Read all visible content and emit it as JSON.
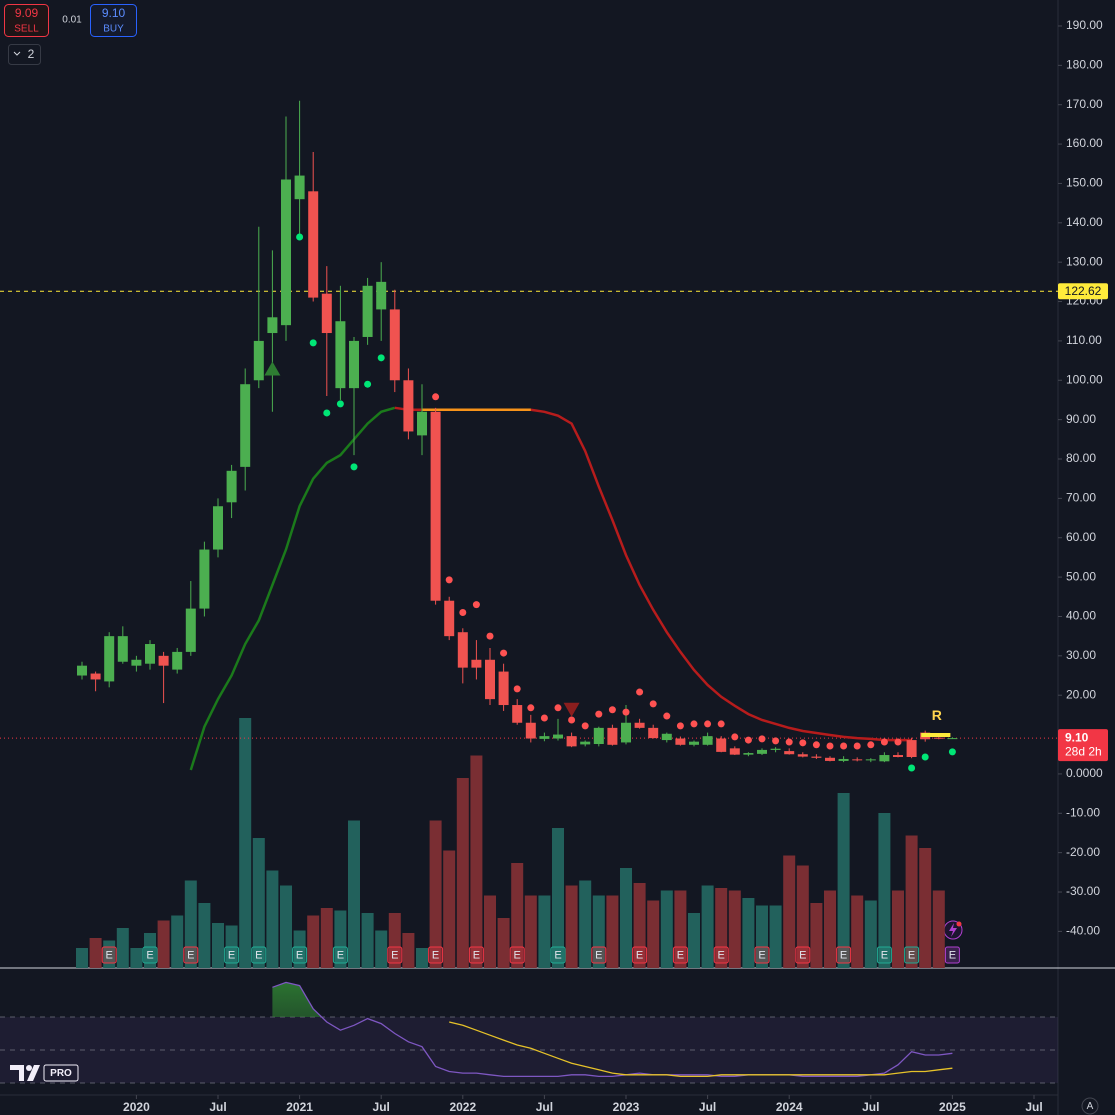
{
  "chart_data": {
    "type": "candlestick",
    "x": [
      "2019-09",
      "2019-10",
      "2019-11",
      "2019-12",
      "2020-01",
      "2020-02",
      "2020-03",
      "2020-04",
      "2020-05",
      "2020-06",
      "2020-07",
      "2020-08",
      "2020-09",
      "2020-10",
      "2020-11",
      "2020-12",
      "2021-01",
      "2021-02",
      "2021-03",
      "2021-04",
      "2021-05",
      "2021-06",
      "2021-07",
      "2021-08",
      "2021-09",
      "2021-10",
      "2021-11",
      "2021-12",
      "2022-01",
      "2022-02",
      "2022-03",
      "2022-04",
      "2022-05",
      "2022-06",
      "2022-07",
      "2022-08",
      "2022-09",
      "2022-10",
      "2022-11",
      "2022-12",
      "2023-01",
      "2023-02",
      "2023-03",
      "2023-04",
      "2023-05",
      "2023-06",
      "2023-07",
      "2023-08",
      "2023-09",
      "2023-10",
      "2023-11",
      "2023-12",
      "2024-01",
      "2024-02",
      "2024-03",
      "2024-04",
      "2024-05",
      "2024-06",
      "2024-07",
      "2024-08",
      "2024-09",
      "2024-10",
      "2024-11",
      "2024-12",
      "2025-01"
    ],
    "open": [
      25,
      25.5,
      23.5,
      28.5,
      27.5,
      28,
      30,
      26.5,
      31,
      42,
      57,
      69,
      78,
      100,
      112,
      114,
      146,
      148,
      122,
      98,
      98,
      111,
      118,
      118,
      100,
      86,
      92,
      44,
      36,
      29,
      29,
      26,
      17.5,
      13,
      8.9,
      9,
      9.6,
      7.5,
      7.6,
      11.7,
      8,
      13,
      11.7,
      8.6,
      9,
      7.4,
      7.4,
      9,
      6.5,
      4.9,
      5.1,
      6.1,
      5.8,
      5.0,
      4.4,
      4.1,
      3.3,
      3.7,
      3.5,
      3.2,
      4.8,
      8.6,
      10.5,
      9.2,
      9.1
    ],
    "high": [
      28.5,
      26,
      36,
      37.5,
      30,
      34,
      31,
      32,
      49,
      59,
      70,
      78.5,
      103,
      139,
      133,
      167,
      171,
      158,
      129,
      124,
      111,
      126,
      130,
      123,
      103,
      99,
      93,
      45,
      37,
      34,
      32,
      28,
      19,
      15,
      10.5,
      14,
      10.5,
      8.5,
      12,
      12.5,
      17.5,
      14,
      12.5,
      10.5,
      9.5,
      8.5,
      10.5,
      9.6,
      7,
      5.5,
      6.5,
      6.8,
      6.5,
      5.5,
      5,
      4.5,
      4.5,
      4.2,
      4,
      5.5,
      5.5,
      9.2,
      11,
      9.8,
      9.3
    ],
    "low": [
      24,
      21,
      22,
      28,
      26,
      26.5,
      18,
      25.5,
      30,
      40,
      55,
      65,
      72,
      98,
      92,
      110,
      136,
      120,
      96,
      95,
      81,
      109,
      110,
      97,
      85,
      81,
      43,
      34,
      23,
      24,
      17.5,
      16,
      12.5,
      8,
      8.3,
      8.5,
      6.8,
      7,
      7,
      7.2,
      7.5,
      11.5,
      9,
      8,
      7.2,
      7,
      7.2,
      5.5,
      4.8,
      4.5,
      4.8,
      5.5,
      4.9,
      4.2,
      3.8,
      3.2,
      3.0,
      3.2,
      3.0,
      3.0,
      4.2,
      4.0,
      8.2,
      8.8,
      9.0
    ],
    "close": [
      27.5,
      24,
      35,
      35,
      29,
      33,
      27.5,
      31,
      42,
      57,
      68,
      77,
      99,
      110,
      116,
      151,
      152,
      121,
      112,
      115,
      110,
      124,
      125,
      100,
      87,
      92,
      44,
      35,
      27,
      27,
      19,
      17.5,
      13,
      9,
      9.6,
      10,
      7,
      8.2,
      11.7,
      7.4,
      13,
      11.7,
      9.1,
      10.2,
      7.4,
      8.2,
      9.6,
      5.6,
      4.9,
      5.3,
      6.1,
      6.4,
      5.0,
      4.4,
      4.1,
      3.3,
      3.8,
      3.5,
      3.7,
      4.8,
      4.3,
      4.3,
      8.8,
      9.1,
      9.1
    ],
    "volume": [
      8,
      12,
      11,
      16,
      8,
      14,
      19,
      21,
      35,
      26,
      18,
      17,
      100,
      52,
      39,
      33,
      15,
      21,
      24,
      23,
      59,
      22,
      15,
      22,
      14,
      8,
      59,
      47,
      76,
      85,
      29,
      20,
      42,
      29,
      29,
      56,
      33,
      35,
      29,
      29,
      40,
      34,
      27,
      31,
      31,
      22,
      33,
      32,
      31,
      28,
      25,
      25,
      45,
      41,
      26,
      31,
      70,
      29,
      27,
      62,
      31,
      53,
      48,
      31,
      0
    ],
    "vlim": [
      0,
      100
    ],
    "up_color": "#4caf50",
    "down_color": "#f05350",
    "volume_up_color": "#22615c",
    "volume_down_color": "#7a2e33",
    "ylim": [
      -49.3,
      196.6
    ],
    "yticks": [
      {
        "value": 190,
        "label": "190.00"
      },
      {
        "value": 180,
        "label": "180.00"
      },
      {
        "value": 170,
        "label": "170.00"
      },
      {
        "value": 160,
        "label": "160.00"
      },
      {
        "value": 150,
        "label": "150.00"
      },
      {
        "value": 140,
        "label": "140.00"
      },
      {
        "value": 130,
        "label": "130.00"
      },
      {
        "value": 120,
        "label": "120.00"
      },
      {
        "value": 110,
        "label": "110.00"
      },
      {
        "value": 100,
        "label": "100.00"
      },
      {
        "value": 90,
        "label": "90.00"
      },
      {
        "value": 80,
        "label": "80.00"
      },
      {
        "value": 70,
        "label": "70.00"
      },
      {
        "value": 60,
        "label": "60.00"
      },
      {
        "value": 50,
        "label": "50.00"
      },
      {
        "value": 40,
        "label": "40.00"
      },
      {
        "value": 30,
        "label": "30.00"
      },
      {
        "value": 20,
        "label": "20.00"
      },
      {
        "value": 0,
        "label": "0.0000"
      },
      {
        "value": -10,
        "label": "-10.00"
      },
      {
        "value": -20,
        "label": "-20.00"
      },
      {
        "value": -30,
        "label": "-30.00"
      },
      {
        "value": -40,
        "label": "-40.00"
      }
    ],
    "xticks": [
      {
        "value": "2020-01",
        "label": "2020"
      },
      {
        "value": "2020-07",
        "label": "Jul"
      },
      {
        "value": "2021-01",
        "label": "2021"
      },
      {
        "value": "2021-07",
        "label": "Jul"
      },
      {
        "value": "2022-01",
        "label": "2022"
      },
      {
        "value": "2022-07",
        "label": "Jul"
      },
      {
        "value": "2023-01",
        "label": "2023"
      },
      {
        "value": "2023-07",
        "label": "Jul"
      },
      {
        "value": "2024-01",
        "label": "2024"
      },
      {
        "value": "2024-07",
        "label": "Jul"
      },
      {
        "value": "2025-01",
        "label": "2025"
      },
      {
        "value": "2025-07",
        "label": "Jul"
      }
    ],
    "trend_lines": [
      {
        "color": "#1b7a1b",
        "values": [
          null,
          null,
          null,
          null,
          null,
          null,
          null,
          null,
          1,
          12,
          19,
          25,
          33,
          39,
          48,
          57,
          68,
          75,
          79,
          81,
          85,
          89,
          92,
          93,
          null,
          null,
          null,
          null,
          null,
          null,
          null,
          null,
          null,
          null,
          null,
          null,
          null,
          null,
          null,
          null,
          null,
          null,
          null,
          null,
          null,
          null,
          null,
          null,
          null,
          null,
          null,
          null,
          null,
          null,
          null,
          null,
          null,
          null,
          null,
          null,
          null,
          null,
          null,
          null,
          null
        ]
      },
      {
        "color": "#b71c1c",
        "values": [
          null,
          null,
          null,
          null,
          null,
          null,
          null,
          null,
          null,
          null,
          null,
          null,
          null,
          null,
          null,
          null,
          null,
          null,
          null,
          null,
          null,
          null,
          null,
          93,
          92.5,
          92.5,
          92.5,
          92.5,
          92.5,
          92.5,
          92.5,
          92.5,
          92.5,
          92.5,
          92,
          91,
          89,
          82,
          73,
          64.5,
          55.6,
          48,
          41.7,
          36,
          31,
          26.4,
          22.6,
          19.6,
          17.3,
          15.2,
          13.7,
          12.7,
          11.7,
          10.9,
          10.4,
          9.9,
          9.4,
          9.1,
          8.9,
          8.6,
          8.6,
          8.6,
          null,
          null,
          null
        ]
      },
      {
        "color": "#f7931a",
        "values": [
          null,
          null,
          null,
          null,
          null,
          null,
          null,
          null,
          null,
          null,
          null,
          null,
          null,
          null,
          null,
          null,
          null,
          null,
          null,
          null,
          null,
          null,
          null,
          null,
          null,
          92.5,
          92.5,
          92.5,
          92.5,
          92.5,
          92.5,
          92.5,
          92.5,
          92.5,
          null,
          null,
          null,
          null,
          null,
          null,
          null,
          null,
          null,
          null,
          null,
          null,
          null,
          null,
          null,
          null,
          null,
          null,
          null,
          null,
          null,
          null,
          null,
          null,
          null,
          null,
          null,
          null,
          null,
          null,
          null
        ]
      }
    ],
    "dots": [
      {
        "color": "#00e676",
        "values": [
          null,
          null,
          null,
          null,
          null,
          null,
          null,
          null,
          null,
          null,
          null,
          null,
          null,
          null,
          null,
          null,
          136.4,
          109.5,
          91.7,
          94,
          78,
          99,
          105.7,
          null,
          null,
          null,
          null,
          null,
          null,
          null,
          null,
          null,
          null,
          null,
          null,
          null,
          null,
          null,
          null,
          null,
          null,
          null,
          null,
          null,
          null,
          null,
          null,
          null,
          null,
          null,
          null,
          null,
          null,
          null,
          null,
          null,
          null,
          null,
          null,
          null,
          null,
          1.5,
          4.3,
          null,
          5.6
        ]
      },
      {
        "color": "#ff5252",
        "values": [
          null,
          null,
          null,
          null,
          null,
          null,
          null,
          null,
          null,
          null,
          null,
          null,
          null,
          null,
          null,
          null,
          null,
          null,
          null,
          null,
          null,
          null,
          null,
          null,
          null,
          null,
          95.8,
          49.3,
          41,
          43,
          35,
          30.7,
          21.6,
          16.8,
          14.2,
          16.8,
          13.7,
          12.2,
          15.2,
          16.3,
          15.7,
          20.8,
          17.8,
          14.7,
          12.2,
          12.7,
          12.7,
          12.7,
          9.4,
          8.6,
          8.9,
          8.4,
          8.1,
          7.9,
          7.4,
          7.1,
          7.1,
          7.1,
          7.4,
          8.1,
          8.1,
          null,
          null,
          null,
          null
        ]
      }
    ],
    "signals": [
      {
        "x": "2020-11",
        "value": 103,
        "direction": "up",
        "color": "#2e7d32"
      },
      {
        "x": "2022-09",
        "value": 16.3,
        "direction": "down",
        "color": "#8b1e1e"
      }
    ],
    "hlines": [
      {
        "value": 122.62,
        "color": "#ffeb3b"
      }
    ],
    "last_price": {
      "value": 9.1,
      "label": "9.10",
      "countdown": "28d 2h",
      "color": "#f23645"
    },
    "annotation": {
      "text": "R",
      "x": "2024-12",
      "value": 14.7,
      "color": "#ffd54f"
    },
    "level_marker": {
      "from": "2024-11",
      "to": "2025-01",
      "value": 9.9,
      "color": "#ffeb3b"
    },
    "earnings": {
      "label": "E",
      "dates": [
        "2019-11",
        "2020-02",
        "2020-05",
        "2020-08",
        "2020-10",
        "2021-01",
        "2021-04",
        "2021-08",
        "2021-11",
        "2022-02",
        "2022-05",
        "2022-08",
        "2022-11",
        "2023-02",
        "2023-05",
        "2023-08",
        "2023-11",
        "2024-02",
        "2024-05",
        "2024-08",
        "2024-10",
        "2025-01"
      ],
      "colors": [
        "#f23645",
        "#22ab94",
        "#f23645",
        "#22ab94",
        "#22ab94",
        "#22ab94",
        "#22ab94",
        "#f23645",
        "#f23645",
        "#f23645",
        "#f23645",
        "#22ab94",
        "#f23645",
        "#f23645",
        "#f23645",
        "#f23645",
        "#f23645",
        "#f23645",
        "#f23645",
        "#22ab94",
        "#22ab94",
        "#b040d0"
      ]
    },
    "oscillator": {
      "ylim": [
        0,
        100
      ],
      "bands": [
        70,
        50,
        30
      ],
      "fill_color": "#2e7d32",
      "series": [
        {
          "color": "#7e57c2",
          "values": [
            null,
            null,
            null,
            null,
            null,
            null,
            null,
            null,
            null,
            null,
            null,
            null,
            null,
            null,
            88,
            91,
            89,
            75,
            67,
            62,
            65,
            69,
            66,
            60,
            55,
            52,
            40,
            37,
            36,
            36,
            35,
            34,
            34,
            34,
            34,
            34,
            35,
            35,
            34,
            34,
            35,
            36,
            35,
            35,
            35,
            35,
            35,
            34,
            34,
            35,
            35,
            35,
            35,
            34,
            34,
            34,
            34,
            34,
            35,
            36,
            41,
            49,
            47,
            47,
            48
          ]
        },
        {
          "color": "#e6c229",
          "values": [
            null,
            null,
            null,
            null,
            null,
            null,
            null,
            null,
            null,
            null,
            null,
            null,
            null,
            null,
            null,
            null,
            null,
            null,
            null,
            null,
            null,
            null,
            null,
            null,
            null,
            null,
            null,
            67,
            65,
            62,
            59,
            56,
            53,
            51,
            48,
            45,
            42,
            40,
            38,
            36,
            35,
            35,
            35,
            35,
            34,
            34,
            34,
            35,
            35,
            35,
            35,
            35,
            35,
            35,
            35,
            35,
            35,
            35,
            35,
            35,
            36,
            37,
            37,
            38,
            39
          ]
        }
      ]
    }
  },
  "toolbar": {
    "sell_price": "9.09",
    "sell_label": "SELL",
    "spread": "0.01",
    "buy_price": "9.10",
    "buy_label": "BUY",
    "indicator_count": "2",
    "logo": "PRO"
  },
  "axis_corner": "A"
}
